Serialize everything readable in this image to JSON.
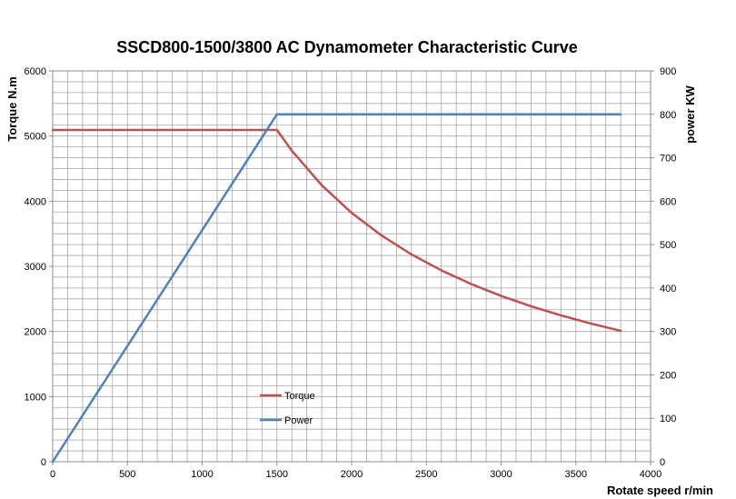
{
  "chart_data": {
    "type": "line",
    "title": "SSCD800-1500/3800 AC Dynamometer Characteristic Curve",
    "xlabel": "Rotate speed r/min",
    "ylabel": "Torque N.m",
    "y2label": "power KW",
    "xlim": [
      0,
      4000
    ],
    "ylim": [
      0,
      6000
    ],
    "y2lim": [
      0,
      900
    ],
    "x_ticks": [
      "0",
      "500",
      "1000",
      "1500",
      "2000",
      "2500",
      "3000",
      "3500",
      "4000"
    ],
    "y_ticks": [
      "0",
      "1000",
      "2000",
      "3000",
      "4000",
      "5000",
      "6000"
    ],
    "y2_ticks": [
      "0",
      "100",
      "200",
      "300",
      "400",
      "500",
      "600",
      "700",
      "800",
      "900"
    ],
    "grid": true,
    "legend_position": "lower-left inside plot",
    "series": [
      {
        "name": "Torque",
        "axis": "left",
        "color": "#c0504d",
        "points": [
          [
            0,
            5093
          ],
          [
            1500,
            5093
          ],
          [
            1600,
            4775
          ],
          [
            1800,
            4244
          ],
          [
            2000,
            3820
          ],
          [
            2200,
            3473
          ],
          [
            2400,
            3183
          ],
          [
            2600,
            2938
          ],
          [
            2800,
            2728
          ],
          [
            3000,
            2546
          ],
          [
            3200,
            2387
          ],
          [
            3400,
            2247
          ],
          [
            3600,
            2122
          ],
          [
            3800,
            2010
          ]
        ]
      },
      {
        "name": "Power",
        "axis": "right",
        "color": "#4f81bd",
        "points": [
          [
            0,
            0
          ],
          [
            1500,
            800
          ],
          [
            3800,
            800
          ]
        ]
      }
    ]
  }
}
